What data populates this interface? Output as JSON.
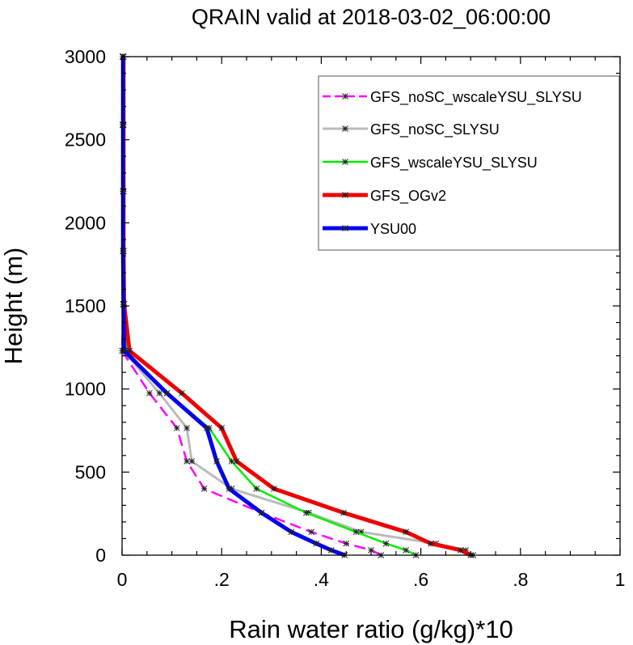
{
  "chart_data": {
    "type": "line",
    "title": "QRAIN valid at 2018-03-02_06:00:00",
    "xlabel": "Rain water ratio (g/kg)*10",
    "ylabel": "Height (m)",
    "xlim": [
      0,
      1
    ],
    "ylim": [
      0,
      3000
    ],
    "x_ticks": [
      {
        "value": 0,
        "label": "0"
      },
      {
        "value": 0.2,
        "label": ".2"
      },
      {
        "value": 0.4,
        "label": ".4"
      },
      {
        "value": 0.6,
        "label": ".6"
      },
      {
        "value": 0.8,
        "label": ".8"
      },
      {
        "value": 1,
        "label": "1"
      }
    ],
    "y_ticks": [
      {
        "value": 0,
        "label": "0"
      },
      {
        "value": 500,
        "label": "500"
      },
      {
        "value": 1000,
        "label": "1000"
      },
      {
        "value": 1500,
        "label": "1500"
      },
      {
        "value": 2000,
        "label": "2000"
      },
      {
        "value": 2500,
        "label": "2500"
      },
      {
        "value": 3000,
        "label": "3000"
      }
    ],
    "grid": false,
    "legend_position": "top-right",
    "series": [
      {
        "name": "GFS_noSC_wscaleYSU_SLYSU",
        "color": "#ff00ff",
        "dashed": true,
        "width": 2.5,
        "points": [
          [
            0.52,
            0
          ],
          [
            0.5,
            30
          ],
          [
            0.45,
            70
          ],
          [
            0.38,
            140
          ],
          [
            0.28,
            255
          ],
          [
            0.165,
            400
          ],
          [
            0.13,
            565
          ],
          [
            0.11,
            765
          ],
          [
            0.055,
            975
          ],
          [
            0.0,
            1230
          ],
          [
            0.002,
            1510
          ],
          [
            0.002,
            1830
          ],
          [
            0.002,
            2190
          ],
          [
            0.001,
            2590
          ],
          [
            0.001,
            3000
          ]
        ]
      },
      {
        "name": "GFS_noSC_SLYSU",
        "color": "#bbbbbb",
        "dashed": false,
        "width": 3,
        "points": [
          [
            0.705,
            0
          ],
          [
            0.69,
            30
          ],
          [
            0.63,
            70
          ],
          [
            0.48,
            140
          ],
          [
            0.375,
            255
          ],
          [
            0.22,
            400
          ],
          [
            0.14,
            565
          ],
          [
            0.13,
            765
          ],
          [
            0.075,
            975
          ],
          [
            0.003,
            1230
          ],
          [
            0.003,
            1510
          ],
          [
            0.002,
            1830
          ],
          [
            0.002,
            2190
          ],
          [
            0.002,
            2590
          ],
          [
            0.002,
            3000
          ]
        ]
      },
      {
        "name": "GFS_wscaleYSU_SLYSU",
        "color": "#00ee00",
        "dashed": false,
        "width": 2.5,
        "points": [
          [
            0.59,
            0
          ],
          [
            0.57,
            30
          ],
          [
            0.53,
            70
          ],
          [
            0.47,
            140
          ],
          [
            0.37,
            255
          ],
          [
            0.27,
            400
          ],
          [
            0.22,
            565
          ],
          [
            0.175,
            765
          ],
          [
            0.09,
            975
          ],
          [
            0.008,
            1230
          ],
          [
            0.004,
            1510
          ],
          [
            0.003,
            1830
          ],
          [
            0.002,
            2190
          ],
          [
            0.002,
            2590
          ],
          [
            0.002,
            3000
          ]
        ]
      },
      {
        "name": "GFS_OGv2",
        "color": "#ee0000",
        "dashed": false,
        "width": 5,
        "points": [
          [
            0.7,
            0
          ],
          [
            0.68,
            30
          ],
          [
            0.62,
            70
          ],
          [
            0.57,
            140
          ],
          [
            0.445,
            255
          ],
          [
            0.305,
            400
          ],
          [
            0.23,
            565
          ],
          [
            0.2,
            765
          ],
          [
            0.12,
            975
          ],
          [
            0.015,
            1230
          ],
          [
            0.004,
            1510
          ],
          [
            0.003,
            1830
          ],
          [
            0.003,
            2190
          ],
          [
            0.003,
            2590
          ],
          [
            0.003,
            3000
          ]
        ]
      },
      {
        "name": "YSU00",
        "color": "#0000ee",
        "dashed": false,
        "width": 5,
        "points": [
          [
            0.447,
            0
          ],
          [
            0.42,
            30
          ],
          [
            0.39,
            70
          ],
          [
            0.34,
            140
          ],
          [
            0.28,
            255
          ],
          [
            0.215,
            400
          ],
          [
            0.19,
            565
          ],
          [
            0.17,
            765
          ],
          [
            0.09,
            975
          ],
          [
            0.004,
            1230
          ],
          [
            0.003,
            1510
          ],
          [
            0.002,
            1830
          ],
          [
            0.002,
            2190
          ],
          [
            0.002,
            2590
          ],
          [
            0.002,
            3000
          ]
        ]
      }
    ]
  }
}
